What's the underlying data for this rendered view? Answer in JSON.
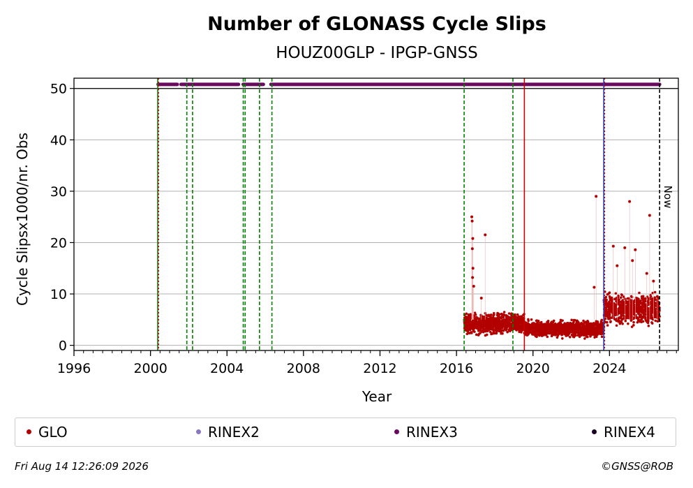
{
  "chart_data": {
    "type": "scatter",
    "title": "Number of GLONASS Cycle Slips",
    "subtitle": "HOUZ00GLP - IPGP-GNSS",
    "xlabel": "Year",
    "ylabel": "Cycle Slipsx1000/nr. Obs",
    "xlim": [
      1996,
      2027.6
    ],
    "ylim": [
      -1,
      52
    ],
    "xticks": [
      "1996",
      "2000",
      "2004",
      "2008",
      "2012",
      "2016",
      "2020",
      "2024"
    ],
    "xtick_values": [
      1996,
      2000,
      2004,
      2008,
      2012,
      2016,
      2020,
      2024
    ],
    "yticks": [
      "0",
      "10",
      "20",
      "30",
      "40",
      "50"
    ],
    "ytick_values": [
      0,
      10,
      20,
      30,
      40,
      50
    ],
    "grid": "horizontal",
    "reference_line_y": 50,
    "now_label": "Now",
    "now_year": 2026.62,
    "vertical_lines": [
      {
        "x": 2000.38,
        "color": "#008000",
        "style": "solid"
      },
      {
        "x": 2000.42,
        "color": "#cc0000",
        "style": "dotted"
      },
      {
        "x": 2001.9,
        "color": "#008000",
        "style": "dashed"
      },
      {
        "x": 2002.2,
        "color": "#008000",
        "style": "dashed"
      },
      {
        "x": 2004.85,
        "color": "#008000",
        "style": "dashed"
      },
      {
        "x": 2004.95,
        "color": "#008000",
        "style": "dashed"
      },
      {
        "x": 2005.7,
        "color": "#008000",
        "style": "dashed"
      },
      {
        "x": 2006.35,
        "color": "#008000",
        "style": "dashed"
      },
      {
        "x": 2016.4,
        "color": "#008000",
        "style": "dashed"
      },
      {
        "x": 2018.95,
        "color": "#008000",
        "style": "dashed"
      },
      {
        "x": 2019.55,
        "color": "#cc0000",
        "style": "solid"
      },
      {
        "x": 2023.7,
        "color": "#1f3fbf",
        "style": "solid"
      },
      {
        "x": 2023.74,
        "color": "#cc0000",
        "style": "dotted"
      },
      {
        "x": 2026.62,
        "color": "#000000",
        "style": "dashed"
      }
    ],
    "rinex3_segments": [
      [
        2000.4,
        2001.4
      ],
      [
        2001.6,
        2004.6
      ],
      [
        2004.85,
        2005.9
      ],
      [
        2006.3,
        2026.62
      ]
    ],
    "rinex3_level": 50.8,
    "glo_clusters": [
      {
        "start": 2016.4,
        "end": 2019.55,
        "mean": 4.2,
        "spread": 1.6
      },
      {
        "start": 2019.55,
        "end": 2023.7,
        "mean": 3.2,
        "spread": 1.3
      },
      {
        "start": 2023.7,
        "end": 2026.62,
        "mean": 7.0,
        "spread": 2.4
      }
    ],
    "glo_outliers": [
      {
        "x": 2016.8,
        "y": 25.0
      },
      {
        "x": 2016.82,
        "y": 24.2
      },
      {
        "x": 2016.85,
        "y": 20.8
      },
      {
        "x": 2016.83,
        "y": 18.8
      },
      {
        "x": 2016.86,
        "y": 15.0
      },
      {
        "x": 2016.84,
        "y": 13.2
      },
      {
        "x": 2016.9,
        "y": 11.5
      },
      {
        "x": 2017.5,
        "y": 21.5
      },
      {
        "x": 2017.3,
        "y": 9.2
      },
      {
        "x": 2023.3,
        "y": 29.0
      },
      {
        "x": 2023.2,
        "y": 11.3
      },
      {
        "x": 2024.2,
        "y": 19.3
      },
      {
        "x": 2024.4,
        "y": 15.5
      },
      {
        "x": 2024.8,
        "y": 19.0
      },
      {
        "x": 2025.05,
        "y": 28.0
      },
      {
        "x": 2025.35,
        "y": 18.6
      },
      {
        "x": 2025.2,
        "y": 16.5
      },
      {
        "x": 2026.1,
        "y": 25.3
      },
      {
        "x": 2025.95,
        "y": 14.0
      },
      {
        "x": 2026.3,
        "y": 12.5
      },
      {
        "x": 2026.5,
        "y": 9.5
      }
    ],
    "legend": [
      {
        "label": "GLO",
        "color": "#b30000"
      },
      {
        "label": "RINEX2",
        "color": "#8878c0"
      },
      {
        "label": "RINEX3",
        "color": "#6a0a5f"
      },
      {
        "label": "RINEX4",
        "color": "#1a0022"
      }
    ]
  },
  "footer": {
    "timestamp": "Fri Aug 14 12:26:09 2026",
    "credit": "©GNSS@ROB"
  }
}
